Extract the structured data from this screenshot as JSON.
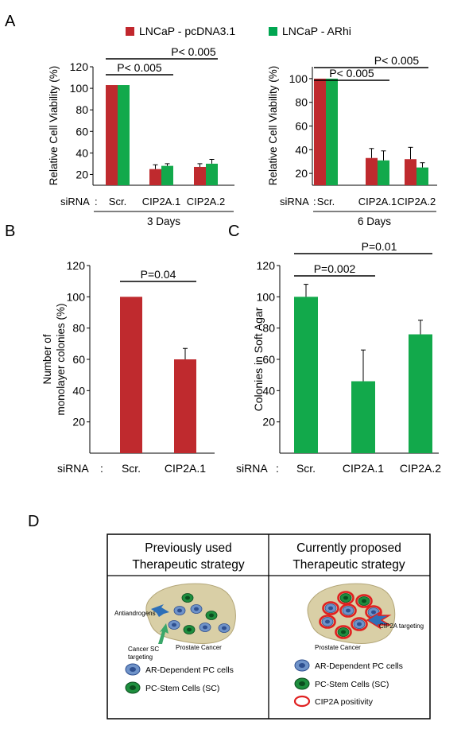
{
  "panels": {
    "A": "A",
    "B": "B",
    "C": "C",
    "D": "D"
  },
  "colors": {
    "red": "#C1272D",
    "green": "#00A651",
    "bar_red": "#BF2A2E",
    "bar_green": "#12A94B"
  },
  "legend": {
    "s1": "LNCaP - pcDNA3.1",
    "s2": "LNCaP - ARhi"
  },
  "sirna": "siRNA",
  "colon": ":",
  "chart_data": [
    {
      "panel": "A-left",
      "type": "bar",
      "categories": [
        "Scr.",
        "CIP2A.1",
        "CIP2A.2"
      ],
      "series": [
        {
          "name": "LNCaP - pcDNA3.1",
          "values": [
            103,
            25,
            27
          ],
          "err": [
            0,
            4,
            3
          ]
        },
        {
          "name": "LNCaP - ARhi",
          "values": [
            103,
            28,
            30
          ],
          "err": [
            0,
            2,
            4
          ]
        }
      ],
      "ylabel": "Relative Cell Viability (%)",
      "ylim": [
        10,
        120
      ],
      "yticks": [
        "20",
        "40",
        "60",
        "80",
        "100",
        "120"
      ],
      "ytick_values": [
        20,
        40,
        60,
        80,
        100,
        120
      ],
      "group_label": "3 Days",
      "pvalues": [
        {
          "text": "P< 0.005",
          "from": 0,
          "to": 1
        },
        {
          "text": "P< 0.005",
          "from": 0,
          "to": 2
        }
      ]
    },
    {
      "panel": "A-right",
      "type": "bar",
      "categories": [
        "Scr.",
        "CIP2A.1",
        "CIP2A.2"
      ],
      "series": [
        {
          "name": "LNCaP - pcDNA3.1",
          "values": [
            100,
            33,
            32
          ],
          "err": [
            0,
            8,
            10
          ]
        },
        {
          "name": "LNCaP - ARhi",
          "values": [
            100,
            31,
            25
          ],
          "err": [
            0,
            8,
            4
          ]
        }
      ],
      "ylabel": "Relative Cell Viability (%)",
      "ylim": [
        10,
        110
      ],
      "yticks": [
        "20",
        "40",
        "60",
        "80",
        "100"
      ],
      "ytick_values": [
        20,
        40,
        60,
        80,
        100
      ],
      "group_label": "6 Days",
      "pvalues": [
        {
          "text": "P< 0.005",
          "from": 0,
          "to": 1
        },
        {
          "text": "P< 0.005",
          "from": 0,
          "to": 2
        }
      ]
    },
    {
      "panel": "B",
      "type": "bar",
      "categories": [
        "Scr.",
        "CIP2A.1"
      ],
      "series": [
        {
          "name": "",
          "values": [
            100,
            60
          ],
          "err": [
            0,
            7
          ]
        }
      ],
      "ylabel": "Number of monolayer colonies (%)",
      "ylabel_lines": [
        "Number of",
        "monolayer colonies (%)"
      ],
      "ylim": [
        0,
        120
      ],
      "yticks": [
        "20",
        "40",
        "60",
        "80",
        "100",
        "120"
      ],
      "ytick_values": [
        20,
        40,
        60,
        80,
        100,
        120
      ],
      "pvalues": [
        {
          "text": "P=0.04",
          "from": 0,
          "to": 1
        }
      ]
    },
    {
      "panel": "C",
      "type": "bar",
      "categories": [
        "Scr.",
        "CIP2A.1",
        "CIP2A.2"
      ],
      "series": [
        {
          "name": "",
          "values": [
            100,
            46,
            76
          ],
          "err": [
            8,
            20,
            9
          ]
        }
      ],
      "ylabel": "Colonies in Soft Agar",
      "ylim": [
        0,
        120
      ],
      "yticks": [
        "20",
        "40",
        "60",
        "80",
        "100",
        "120"
      ],
      "ytick_values": [
        20,
        40,
        60,
        80,
        100,
        120
      ],
      "pvalues": [
        {
          "text": "P=0.002",
          "from": 0,
          "to": 1
        },
        {
          "text": "P=0.01",
          "from": 0,
          "to": 2
        }
      ]
    }
  ],
  "diagram": {
    "left_title": [
      "Previously used",
      "Therapeutic strategy"
    ],
    "right_title": [
      "Currently proposed",
      "Therapeutic strategy"
    ],
    "left_labels": {
      "antiandrogens": "Antiandrogens",
      "cancer_sc_1": "Cancer SC",
      "cancer_sc_2": "targeting",
      "prostate_cancer": "Prostate Cancer"
    },
    "right_labels": {
      "cip2a_targeting": "CIP2A targeting",
      "prostate_cancer": "Prostate Cancer"
    },
    "legend_left": [
      "AR-Dependent PC cells",
      "PC-Stem Cells (SC)"
    ],
    "legend_right": [
      "AR-Dependent PC cells",
      "PC-Stem Cells (SC)",
      "CIP2A positivity"
    ],
    "cell_colors": {
      "blob": "#D9CFA6",
      "blob_stroke": "#B3A678",
      "blue_cell": "#6F93C9",
      "blue_nucleus": "#2E4F8F",
      "green_cell": "#1E8E3E",
      "green_nucleus": "#0B4D1F",
      "ring": "#E02020",
      "arrow": "#2D6FB8",
      "arrow_green": "#3BA76A"
    }
  }
}
